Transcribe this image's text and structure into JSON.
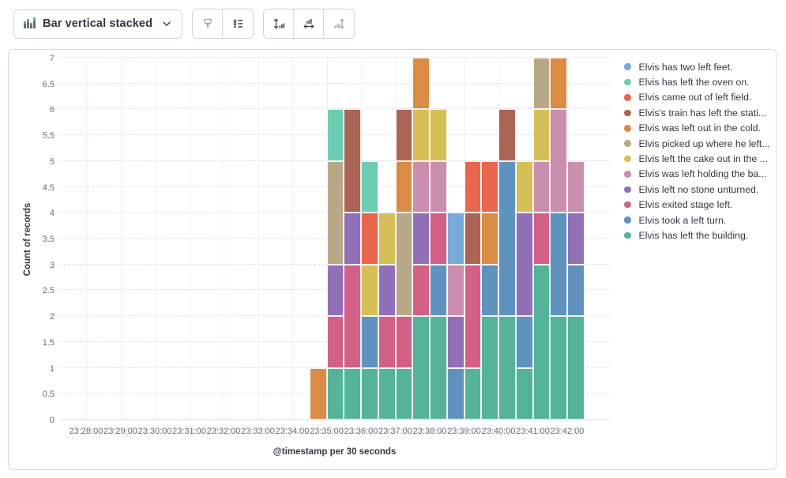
{
  "toolbar": {
    "chart_type_label": "Bar vertical stacked",
    "chart_type_icon": "bar-vertical-stacked-icon",
    "buttons": [
      {
        "icon": "brush-icon",
        "disabled": true
      },
      {
        "icon": "legend-settings-icon",
        "disabled": false
      },
      {
        "icon": "vertical-axis-extent-icon",
        "disabled": false
      },
      {
        "icon": "horizontal-axis-extent-icon",
        "disabled": false
      },
      {
        "icon": "bar-axis-extent-icon",
        "disabled": true
      }
    ]
  },
  "chart_data": {
    "type": "bar",
    "stacked": true,
    "orientation": "vertical",
    "xlabel": "@timestamp per 30 seconds",
    "ylabel": "Count of records",
    "ylim": [
      0,
      7
    ],
    "grid": true,
    "legend_position": "right",
    "y_ticks": [
      "0",
      "0.5",
      "1",
      "1.5",
      "2",
      "2.5",
      "3",
      "3.5",
      "4",
      "4.5",
      "5",
      "5.5",
      "6",
      "6.5",
      "7"
    ],
    "x_ticks": [
      "23:28:00",
      "23:29:00",
      "23:30:00",
      "23:31:00",
      "23:32:00",
      "23:33:00",
      "23:34:00",
      "23:35:00",
      "23:36:00",
      "23:37:00",
      "23:38:00",
      "23:39:00",
      "23:40:00",
      "23:41:00",
      "23:42:00"
    ],
    "categories": [
      "23:34:30",
      "23:35:00",
      "23:35:30",
      "23:36:00",
      "23:36:30",
      "23:37:00",
      "23:37:30",
      "23:38:00",
      "23:38:30",
      "23:39:00",
      "23:39:30",
      "23:40:00",
      "23:40:30",
      "23:41:00",
      "23:41:30",
      "23:42:00"
    ],
    "series": [
      {
        "name": "Elvis has two left feet.",
        "color": "#79AAD9",
        "values": [
          0,
          0,
          0,
          0,
          0,
          0,
          0,
          0,
          1,
          0,
          0,
          0,
          0,
          0,
          0,
          0
        ]
      },
      {
        "name": "Elvis has left the oven on.",
        "color": "#6DCCB1",
        "values": [
          0,
          1,
          0,
          1,
          0,
          0,
          0,
          0,
          0,
          0,
          0,
          0,
          0,
          0,
          0,
          0
        ]
      },
      {
        "name": "Elvis came out of left field.",
        "color": "#E7664C",
        "values": [
          0,
          0,
          0,
          1,
          0,
          0,
          0,
          0,
          0,
          1,
          1,
          0,
          0,
          0,
          0,
          0
        ]
      },
      {
        "name": "Elvis's train has left the stati...",
        "color": "#AA6556",
        "values": [
          0,
          0,
          2,
          0,
          0,
          1,
          0,
          0,
          0,
          1,
          0,
          1,
          0,
          0,
          0,
          0
        ]
      },
      {
        "name": "Elvis was left out in the cold.",
        "color": "#DA8B45",
        "values": [
          1,
          0,
          0,
          0,
          0,
          1,
          1,
          0,
          0,
          0,
          1,
          0,
          0,
          0,
          1,
          0
        ]
      },
      {
        "name": "Elvis picked up where he left...",
        "color": "#B9A888",
        "values": [
          0,
          2,
          0,
          0,
          0,
          2,
          0,
          0,
          0,
          0,
          0,
          0,
          0,
          1,
          0,
          0
        ]
      },
      {
        "name": "Elvis left the cake out in the ...",
        "color": "#D6BF57",
        "values": [
          0,
          0,
          0,
          1,
          1,
          0,
          1,
          1,
          0,
          0,
          0,
          0,
          1,
          1,
          0,
          0
        ]
      },
      {
        "name": "Elvis was left holding the ba...",
        "color": "#CA8EAE",
        "values": [
          0,
          0,
          0,
          0,
          0,
          0,
          1,
          1,
          1,
          0,
          0,
          0,
          0,
          1,
          2,
          1
        ]
      },
      {
        "name": "Elvis left no stone unturned.",
        "color": "#9170B8",
        "values": [
          0,
          1,
          1,
          0,
          1,
          0,
          1,
          0,
          1,
          0,
          0,
          0,
          2,
          0,
          0,
          1
        ]
      },
      {
        "name": "Elvis exited stage left.",
        "color": "#D36086",
        "values": [
          0,
          1,
          2,
          0,
          1,
          1,
          1,
          1,
          0,
          2,
          0,
          0,
          0,
          1,
          0,
          0
        ]
      },
      {
        "name": "Elvis took a left turn.",
        "color": "#6092C0",
        "values": [
          0,
          0,
          0,
          1,
          0,
          0,
          0,
          1,
          1,
          0,
          1,
          3,
          1,
          0,
          2,
          1
        ]
      },
      {
        "name": "Elvis has left the building.",
        "color": "#54B399",
        "values": [
          0,
          1,
          1,
          1,
          1,
          1,
          2,
          2,
          0,
          1,
          2,
          2,
          1,
          3,
          2,
          2
        ]
      }
    ]
  }
}
